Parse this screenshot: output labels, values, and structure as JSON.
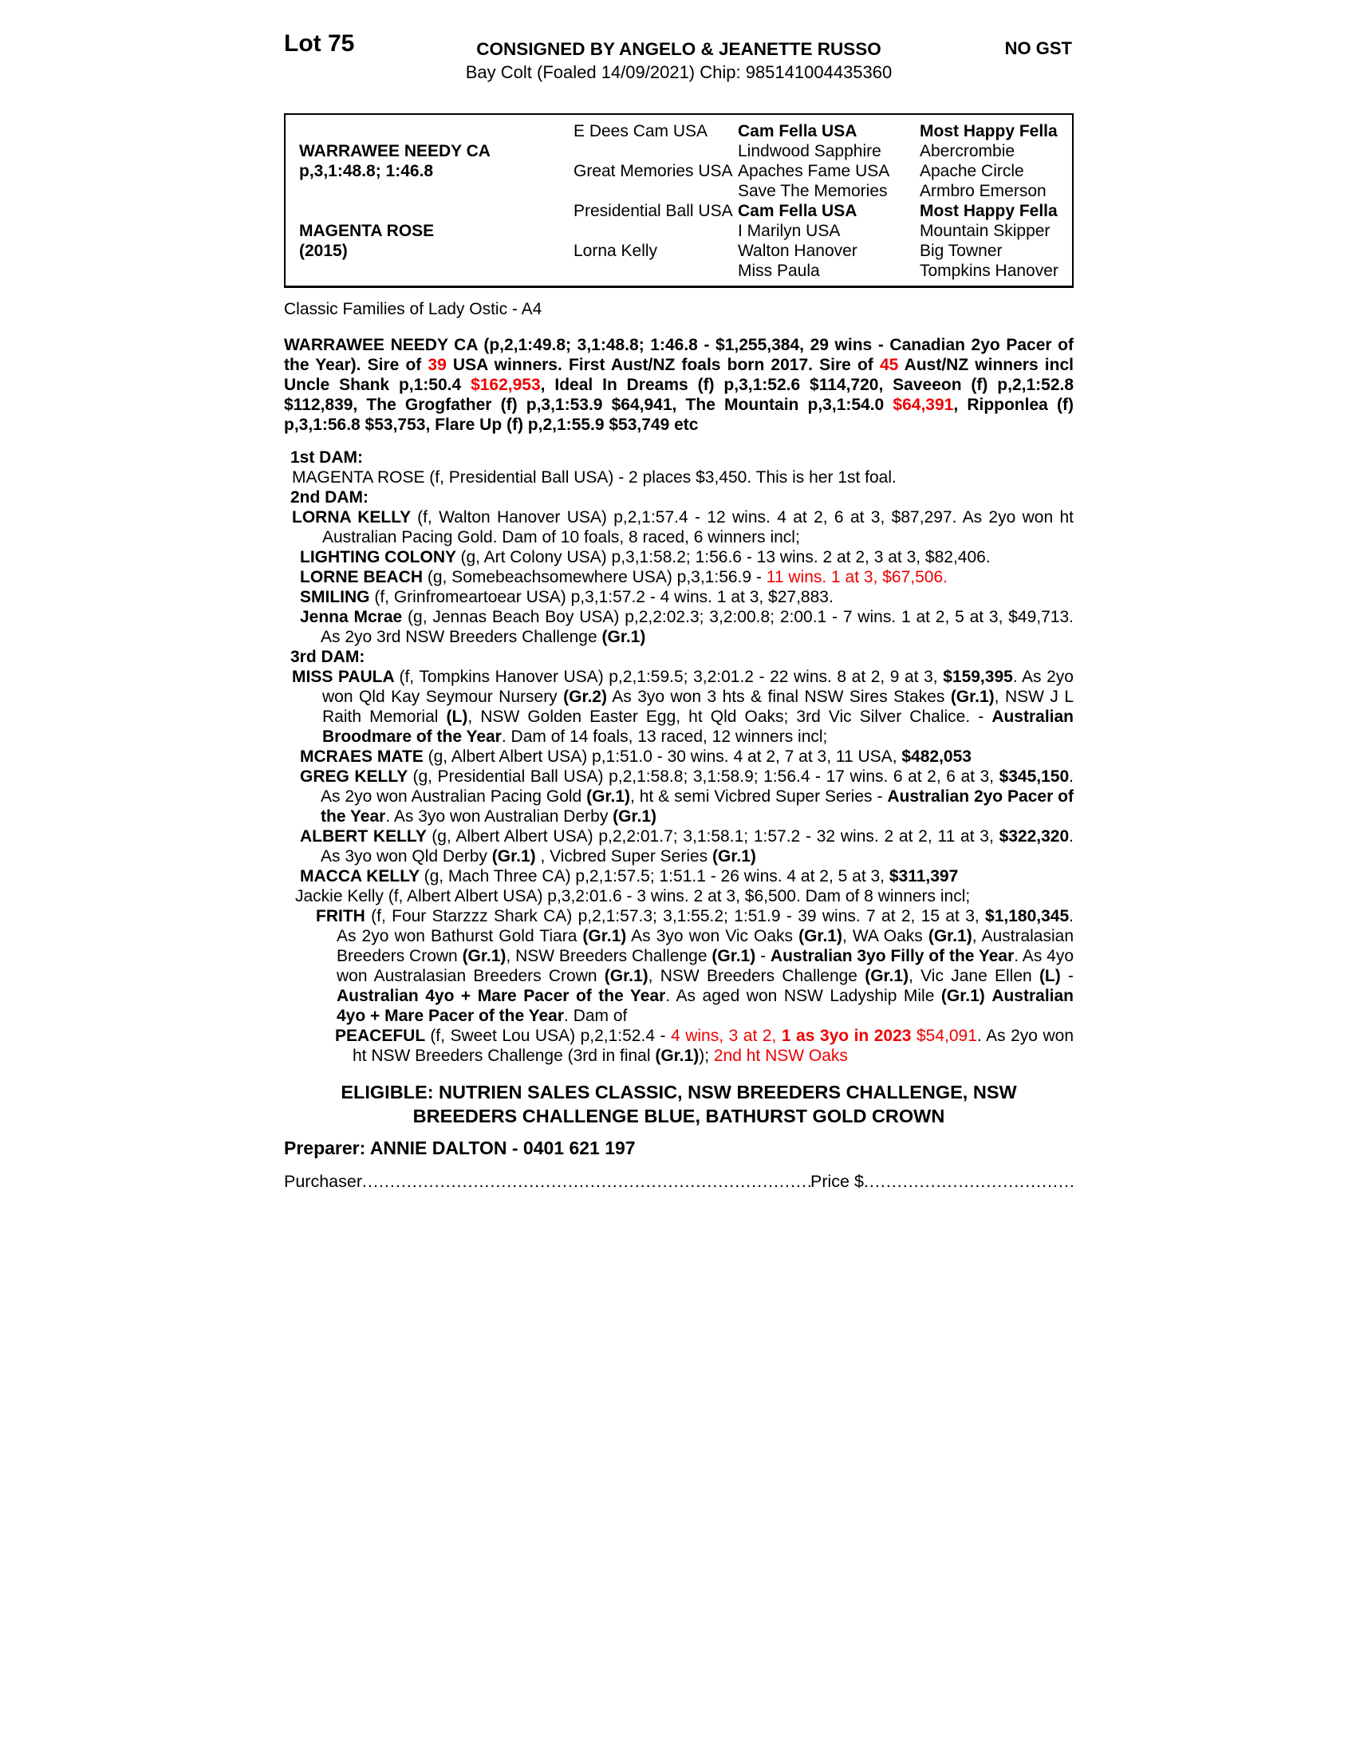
{
  "colors": {
    "highlight_red": "#ee0000"
  },
  "header": {
    "lot": "Lot 75",
    "consigned": "CONSIGNED BY ANGELO & JEANETTE RUSSO",
    "gst": "NO GST",
    "foal_info": "Bay Colt (Foaled 14/09/2021) Chip: 985141004435360"
  },
  "pedigree_table": {
    "rows": [
      [
        null,
        {
          "t": "E Dees Cam USA",
          "b": false
        },
        {
          "t": "Cam Fella USA",
          "b": true
        },
        {
          "t": "Most Happy Fella",
          "b": true
        }
      ],
      [
        {
          "t": "WARRAWEE NEEDY CA",
          "b": true
        },
        null,
        {
          "t": "Lindwood Sapphire",
          "b": false
        },
        {
          "t": "Abercrombie",
          "b": false
        }
      ],
      [
        {
          "t": "p,3,1:48.8; 1:46.8",
          "b": true
        },
        {
          "t": "Great Memories USA",
          "b": false
        },
        {
          "t": "Apaches Fame USA",
          "b": false
        },
        {
          "t": "Apache Circle",
          "b": false
        }
      ],
      [
        null,
        null,
        {
          "t": "Save The Memories",
          "b": false
        },
        {
          "t": "Armbro Emerson",
          "b": false
        }
      ],
      [
        null,
        {
          "t": "Presidential Ball USA",
          "b": false
        },
        {
          "t": "Cam Fella USA",
          "b": true
        },
        {
          "t": "Most Happy Fella",
          "b": true
        }
      ],
      [
        {
          "t": "MAGENTA ROSE",
          "b": true
        },
        null,
        {
          "t": "I Marilyn USA",
          "b": false
        },
        {
          "t": "Mountain Skipper",
          "b": false
        }
      ],
      [
        {
          "t": "(2015)",
          "b": true
        },
        {
          "t": "Lorna Kelly",
          "b": false
        },
        {
          "t": "Walton Hanover",
          "b": false
        },
        {
          "t": "Big Towner",
          "b": false
        }
      ],
      [
        null,
        null,
        {
          "t": "Miss Paula",
          "b": false
        },
        {
          "t": "Tompkins Hanover",
          "b": false
        }
      ]
    ]
  },
  "family_line": "Classic Families of Lady Ostic - A4",
  "sire_summary": {
    "runs": [
      {
        "t": "WARRAWEE NEEDY CA (p,2,1:49.8; 3,1:48.8; 1:46.8 - $1,255,384, 29 wins - Canadian 2yo Pacer of the Year). Sire of ",
        "s": "b"
      },
      {
        "t": "39",
        "s": "br"
      },
      {
        "t": " USA winners. First Aust/NZ foals born 2017. Sire of ",
        "s": "b"
      },
      {
        "t": "45",
        "s": "br"
      },
      {
        "t": " Aust/NZ winners incl Uncle Shank p,1:50.4 ",
        "s": "b"
      },
      {
        "t": "$162,953",
        "s": "br"
      },
      {
        "t": ", Ideal In Dreams (f) p,3,1:52.6 $114,720, Saveeon (f) p,2,1:52.8 $112,839, The Grogfather (f) p,3,1:53.9 $64,941, The Mountain p,3,1:54.0 ",
        "s": "b"
      },
      {
        "t": "$64,391",
        "s": "br"
      },
      {
        "t": ", Ripponlea (f) p,3,1:56.8 $53,753, Flare Up (f) p,2,1:55.9 $53,749 etc",
        "s": "b"
      }
    ]
  },
  "dam1_heading": "1st DAM:",
  "dam2_heading": "2nd DAM:",
  "dam3_heading": "3rd DAM:",
  "magenta_rose": {
    "runs": [
      {
        "t": "MAGENTA ROSE (f, Presidential Ball USA) - 2 places $3,450. This is her 1st foal.",
        "s": ""
      }
    ]
  },
  "lorna_kelly": {
    "runs": [
      {
        "t": "LORNA KELLY ",
        "s": "b"
      },
      {
        "t": "(f, Walton Hanover USA) p,2,1:57.4 - 12 wins. 4 at 2, 6 at 3, $87,297. As 2yo won ht Australian Pacing Gold. Dam of 10 foals, 8 raced, 6 winners incl;",
        "s": ""
      }
    ]
  },
  "lighting_colony": {
    "runs": [
      {
        "t": "LIGHTING COLONY ",
        "s": "b"
      },
      {
        "t": "(g, Art Colony USA) p,3,1:58.2; 1:56.6 - 13 wins. 2 at 2, 3 at 3, $82,406.",
        "s": ""
      }
    ]
  },
  "lorne_beach": {
    "runs": [
      {
        "t": "LORNE BEACH ",
        "s": "b"
      },
      {
        "t": "(g, Somebeachsomewhere USA) p,3,1:56.9 - ",
        "s": ""
      },
      {
        "t": "11 wins. 1 at 3, $67,506.",
        "s": "r"
      }
    ]
  },
  "smiling": {
    "runs": [
      {
        "t": "SMILING ",
        "s": "b"
      },
      {
        "t": "(f, Grinfromeartoear USA) p,3,1:57.2 - 4 wins. 1 at 3, $27,883.",
        "s": ""
      }
    ]
  },
  "jenna_mcrae": {
    "runs": [
      {
        "t": "Jenna Mcrae ",
        "s": "b"
      },
      {
        "t": "(g, Jennas Beach Boy USA) p,2,2:02.3; 3,2:00.8; 2:00.1 - 7 wins. 1 at 2, 5 at 3, $49,713. As 2yo 3rd NSW Breeders Challenge ",
        "s": ""
      },
      {
        "t": "(Gr.1)",
        "s": "b"
      }
    ]
  },
  "miss_paula": {
    "runs": [
      {
        "t": "MISS PAULA ",
        "s": "b"
      },
      {
        "t": "(f, Tompkins Hanover USA) p,2,1:59.5; 3,2:01.2 - 22 wins. 8 at 2, 9 at 3, ",
        "s": ""
      },
      {
        "t": "$159,395",
        "s": "b"
      },
      {
        "t": ". As 2yo won Qld Kay Seymour Nursery ",
        "s": ""
      },
      {
        "t": "(Gr.2)",
        "s": "b"
      },
      {
        "t": " As 3yo won 3 hts & final NSW Sires Stakes ",
        "s": ""
      },
      {
        "t": "(Gr.1)",
        "s": "b"
      },
      {
        "t": ", NSW J L Raith Memorial ",
        "s": ""
      },
      {
        "t": "(L)",
        "s": "b"
      },
      {
        "t": ", NSW Golden Easter Egg, ht Qld Oaks; 3rd Vic Silver Chalice. - ",
        "s": ""
      },
      {
        "t": "Australian Broodmare of the Year",
        "s": "b"
      },
      {
        "t": ". Dam of 14 foals, 13 raced, 12 winners incl;",
        "s": ""
      }
    ]
  },
  "mcraes_mate": {
    "runs": [
      {
        "t": "MCRAES MATE ",
        "s": "b"
      },
      {
        "t": "(g, Albert Albert USA) p,1:51.0 - 30 wins. 4 at 2, 7 at 3, 11 USA, ",
        "s": ""
      },
      {
        "t": "$482,053",
        "s": "b"
      }
    ]
  },
  "greg_kelly": {
    "runs": [
      {
        "t": "GREG KELLY ",
        "s": "b"
      },
      {
        "t": "(g, Presidential Ball USA) p,2,1:58.8; 3,1:58.9; 1:56.4 - 17 wins. 6 at 2, 6 at 3, ",
        "s": ""
      },
      {
        "t": "$345,150",
        "s": "b"
      },
      {
        "t": ". As 2yo won Australian Pacing Gold ",
        "s": ""
      },
      {
        "t": "(Gr.1)",
        "s": "b"
      },
      {
        "t": ", ht & semi Vicbred Super Series - ",
        "s": ""
      },
      {
        "t": "Australian 2yo Pacer of the Year",
        "s": "b"
      },
      {
        "t": ". As 3yo won Australian Derby ",
        "s": ""
      },
      {
        "t": "(Gr.1)",
        "s": "b"
      }
    ]
  },
  "albert_kelly": {
    "runs": [
      {
        "t": "ALBERT KELLY ",
        "s": "b"
      },
      {
        "t": "(g, Albert Albert USA) p,2,2:01.7; 3,1:58.1; 1:57.2 - 32 wins. 2 at 2, 11 at 3, ",
        "s": ""
      },
      {
        "t": "$322,320",
        "s": "b"
      },
      {
        "t": ". As 3yo won Qld Derby ",
        "s": ""
      },
      {
        "t": "(Gr.1)",
        "s": "b"
      },
      {
        "t": " , Vicbred Super Series ",
        "s": ""
      },
      {
        "t": "(Gr.1)",
        "s": "b"
      }
    ]
  },
  "macca_kelly": {
    "runs": [
      {
        "t": "MACCA KELLY ",
        "s": "b"
      },
      {
        "t": "(g, Mach Three CA) p,2,1:57.5; 1:51.1 - 26 wins. 4 at 2, 5 at 3, ",
        "s": ""
      },
      {
        "t": "$311,397",
        "s": "b"
      }
    ]
  },
  "jackie_kelly": {
    "runs": [
      {
        "t": "Jackie Kelly (f, Albert Albert USA) p,3,2:01.6 - 3 wins. 2 at 3, $6,500. Dam of 8 winners incl;",
        "s": ""
      }
    ]
  },
  "frith": {
    "runs": [
      {
        "t": "FRITH ",
        "s": "b"
      },
      {
        "t": "(f, Four Starzzz Shark CA) p,2,1:57.3; 3,1:55.2; 1:51.9 - 39 wins. 7 at 2, 15 at 3, ",
        "s": ""
      },
      {
        "t": "$1,180,345",
        "s": "b"
      },
      {
        "t": ". As 2yo won Bathurst Gold Tiara ",
        "s": ""
      },
      {
        "t": "(Gr.1)",
        "s": "b"
      },
      {
        "t": " As 3yo won Vic Oaks ",
        "s": ""
      },
      {
        "t": "(Gr.1)",
        "s": "b"
      },
      {
        "t": ", WA Oaks ",
        "s": ""
      },
      {
        "t": "(Gr.1)",
        "s": "b"
      },
      {
        "t": ", Australasian Breeders Crown ",
        "s": ""
      },
      {
        "t": "(Gr.1)",
        "s": "b"
      },
      {
        "t": ", NSW Breeders Challenge ",
        "s": ""
      },
      {
        "t": "(Gr.1)",
        "s": "b"
      },
      {
        "t": " - ",
        "s": ""
      },
      {
        "t": "Australian 3yo Filly of the Year",
        "s": "b"
      },
      {
        "t": ". As 4yo won Australasian Breeders Crown ",
        "s": ""
      },
      {
        "t": "(Gr.1)",
        "s": "b"
      },
      {
        "t": ", NSW Breeders Challenge ",
        "s": ""
      },
      {
        "t": "(Gr.1)",
        "s": "b"
      },
      {
        "t": ", Vic Jane Ellen ",
        "s": ""
      },
      {
        "t": "(L)",
        "s": "b"
      },
      {
        "t": " - ",
        "s": ""
      },
      {
        "t": "Australian 4yo + Mare Pacer of the Year",
        "s": "b"
      },
      {
        "t": ". As aged won NSW Ladyship Mile ",
        "s": ""
      },
      {
        "t": "(Gr.1)",
        "s": "b"
      },
      {
        "t": " ",
        "s": ""
      },
      {
        "t": "Australian 4yo + Mare Pacer of the Year",
        "s": "b"
      },
      {
        "t": ". Dam of",
        "s": ""
      }
    ]
  },
  "peaceful": {
    "runs": [
      {
        "t": "PEACEFUL ",
        "s": "b"
      },
      {
        "t": "(f, Sweet Lou USA) p,2,1:52.4 - ",
        "s": ""
      },
      {
        "t": "4 wins, 3 at 2, ",
        "s": "r"
      },
      {
        "t": "1 as 3yo in 2023",
        "s": "br"
      },
      {
        "t": " $54,091",
        "s": "r"
      },
      {
        "t": ". As 2yo won ht NSW Breeders Challenge (3rd in final ",
        "s": ""
      },
      {
        "t": "(Gr.1)",
        "s": "b"
      },
      {
        "t": "); ",
        "s": ""
      },
      {
        "t": "2nd ht NSW Oaks",
        "s": "r"
      }
    ]
  },
  "eligible": {
    "line1": "ELIGIBLE: NUTRIEN SALES CLASSIC, NSW BREEDERS CHALLENGE, NSW",
    "line2": "BREEDERS CHALLENGE BLUE, BATHURST GOLD CROWN"
  },
  "preparer": "Preparer: ANNIE DALTON - 0401 621 197",
  "purchase_line": {
    "purchaser_label": "Purchaser",
    "dots1": "..........................................................................................................................................................",
    "price_label": "Price $",
    "dots2": ".........................................................................................................................................................."
  }
}
